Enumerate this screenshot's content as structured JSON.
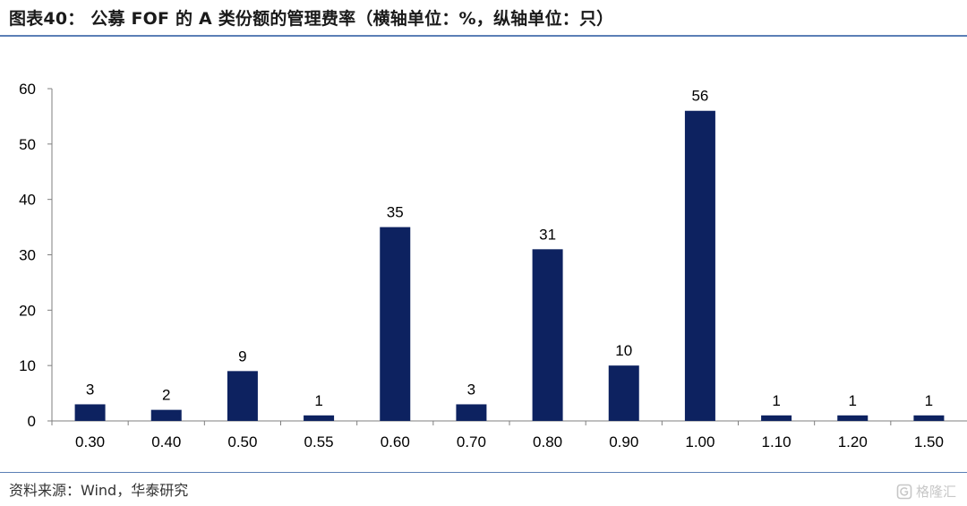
{
  "title": "图表40： 公募 FOF 的 A 类份额的管理费率（横轴单位：%，纵轴单位：只）",
  "source": "资料来源：Wind，华泰研究",
  "watermark": {
    "icon": "gelonghui-logo-icon",
    "text": "格隆汇"
  },
  "colors": {
    "bar": "#0d2260",
    "rule": "#5b7fb6",
    "axis": "#7f7f7f"
  },
  "chart_data": {
    "type": "bar",
    "title": "图表40： 公募 FOF 的 A 类份额的管理费率（横轴单位：%，纵轴单位：只）",
    "categories": [
      "0.30",
      "0.40",
      "0.50",
      "0.55",
      "0.60",
      "0.70",
      "0.80",
      "0.90",
      "1.00",
      "1.10",
      "1.20",
      "1.50"
    ],
    "values": [
      3,
      2,
      9,
      1,
      35,
      3,
      31,
      10,
      56,
      1,
      1,
      1
    ],
    "data_labels": [
      "3",
      "2",
      "9",
      "1",
      "35",
      "3",
      "31",
      "10",
      "56",
      "1",
      "1",
      "1"
    ],
    "y_ticks": [
      "0",
      "10",
      "20",
      "30",
      "40",
      "50",
      "60"
    ],
    "xlabel": "",
    "ylabel": "",
    "ylim": [
      0,
      60
    ],
    "grid": false,
    "legend": "none"
  }
}
